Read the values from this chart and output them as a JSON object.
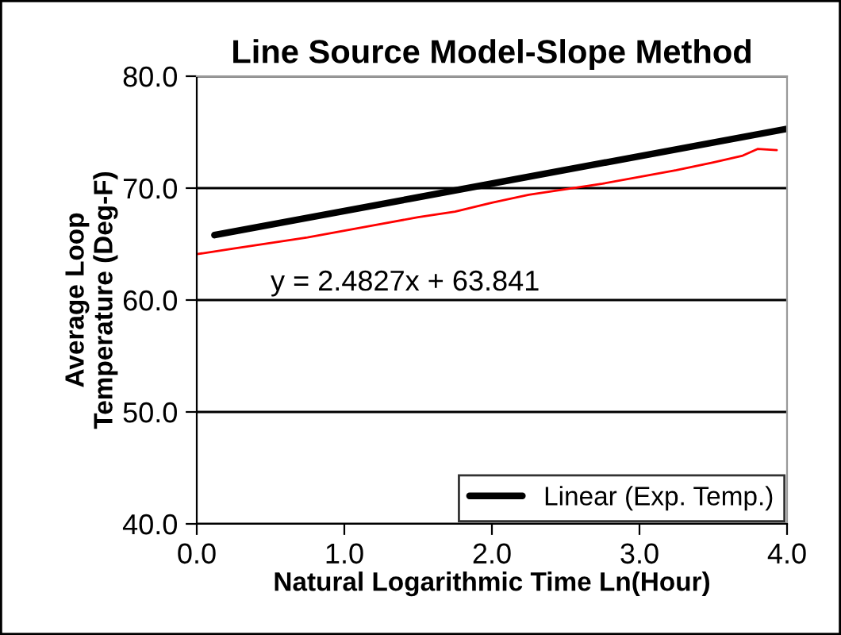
{
  "chart_data": {
    "type": "line",
    "title": "Line Source Model-Slope Method",
    "xlabel": "Natural Logarithmic Time Ln(Hour)",
    "ylabel": "Average Loop\nTemperature (Deg-F)",
    "series": [
      {
        "color": "#ff0000",
        "x": [
          0.0,
          0.25,
          0.5,
          0.75,
          1.0,
          1.25,
          1.5,
          1.75,
          2.0,
          2.25,
          2.5,
          2.75,
          3.0,
          3.25,
          3.5,
          3.7,
          3.8,
          3.93
        ],
        "values": [
          64.1,
          64.6,
          65.1,
          65.6,
          66.2,
          66.8,
          67.4,
          67.9,
          68.7,
          69.4,
          69.9,
          70.4,
          71.0,
          71.6,
          72.3,
          72.9,
          73.5,
          73.4
        ]
      },
      {
        "name": "Linear (Exp. Temp.)",
        "color": "#000000",
        "x": [
          0.12,
          4.0
        ],
        "values": [
          65.8,
          75.3
        ]
      }
    ],
    "annotations": [
      "y = 2.4827x + 63.841"
    ],
    "xlim": [
      0,
      4
    ],
    "xticks": [
      {
        "value": 0,
        "label": "0.0"
      },
      {
        "value": 1,
        "label": "1.0"
      },
      {
        "value": 2,
        "label": "2.0"
      },
      {
        "value": 3,
        "label": "3.0"
      },
      {
        "value": 4,
        "label": "4.0"
      }
    ],
    "ylim": [
      40,
      80
    ],
    "yticks": [
      {
        "value": 40,
        "label": "40.0"
      },
      {
        "value": 50,
        "label": "50.0"
      },
      {
        "value": 60,
        "label": "60.0"
      },
      {
        "value": 70,
        "label": "70.0"
      },
      {
        "value": 80,
        "label": "80.0"
      }
    ],
    "grid": "y",
    "legend": "bottom right"
  }
}
